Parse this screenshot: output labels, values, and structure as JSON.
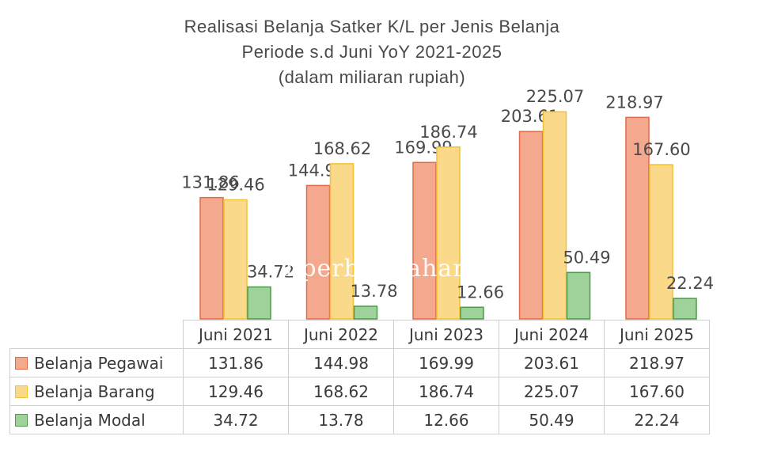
{
  "chart_data": {
    "type": "bar",
    "title_lines": [
      "Realisasi Belanja Satker K/L  per Jenis Belanja",
      "Periode s.d Juni YoY 2021-2025",
      "(dalam miliaran rupiah)"
    ],
    "categories": [
      "Juni 2021",
      "Juni 2022",
      "Juni 2023",
      "Juni 2024",
      "Juni 2025"
    ],
    "series": [
      {
        "name": "Belanja Pegawai",
        "values": [
          131.86,
          144.98,
          169.99,
          203.61,
          218.97
        ],
        "labels": [
          "131.86",
          "144.98",
          "169.99",
          "203.61",
          "218.97"
        ],
        "color": "#f4a98e",
        "border": "#e06a4a"
      },
      {
        "name": "Belanja Barang",
        "values": [
          129.46,
          168.62,
          186.74,
          225.07,
          167.6
        ],
        "labels": [
          "129.46",
          "168.62",
          "186.74",
          "225.07",
          "167.60"
        ],
        "color": "#fbd98a",
        "border": "#f2c230"
      },
      {
        "name": "Belanja Modal",
        "values": [
          34.72,
          13.78,
          12.66,
          50.49,
          22.24
        ],
        "labels": [
          "34.72",
          "13.78",
          "12.66",
          "50.49",
          "22.24"
        ],
        "color": "#9fd19a",
        "border": "#4f9a4c"
      }
    ],
    "ylim": [
      0,
      240
    ],
    "grid": false,
    "legend": "data-table"
  },
  "watermark": "nperbendahara."
}
